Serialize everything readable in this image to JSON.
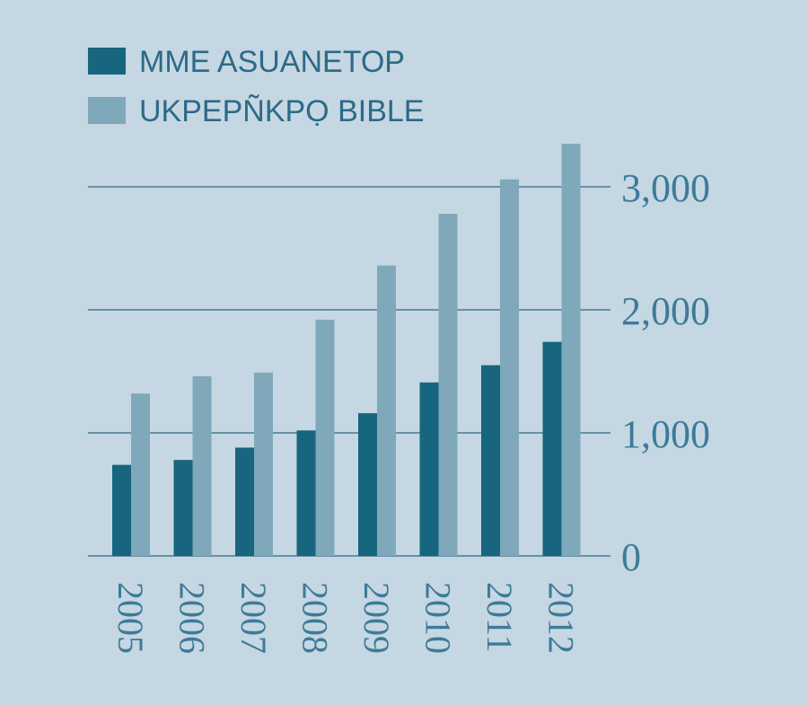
{
  "chart_data": {
    "type": "bar",
    "categories": [
      "2005",
      "2006",
      "2007",
      "2008",
      "2009",
      "2010",
      "2011",
      "2012"
    ],
    "series": [
      {
        "name": "MME ASUANETOP",
        "color": "#17657f",
        "values": [
          740,
          780,
          880,
          1020,
          1160,
          1410,
          1550,
          1740
        ]
      },
      {
        "name": "UKPEPÑKPỌ BIBLE",
        "color": "#7fa8bb",
        "values": [
          1320,
          1460,
          1490,
          1920,
          2360,
          2780,
          3060,
          3350
        ]
      }
    ],
    "yticks": [
      {
        "value": 0,
        "label": "0"
      },
      {
        "value": 1000,
        "label": "1,000"
      },
      {
        "value": 2000,
        "label": "2,000"
      },
      {
        "value": 3000,
        "label": "3,000"
      }
    ],
    "ylim": [
      0,
      3000
    ],
    "grid": true,
    "legend": "top-left",
    "colors": {
      "background": "#c5d7e2",
      "grid": "#2f6a85",
      "text": "#3d7b99",
      "legend_text": "#2c6a88"
    }
  }
}
